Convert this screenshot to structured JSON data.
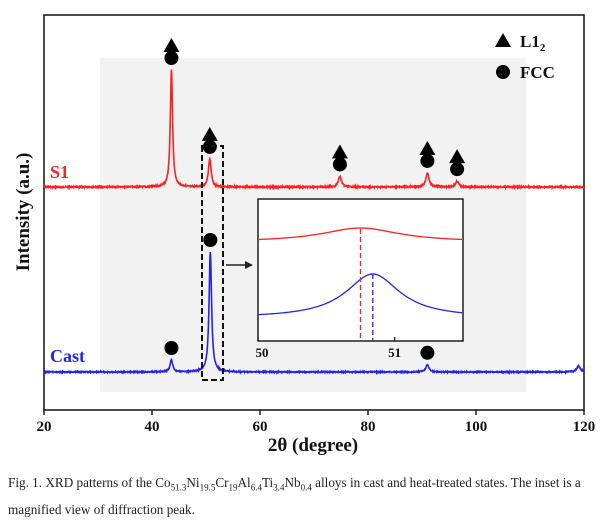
{
  "chart_data": {
    "type": "line",
    "xlabel": "2θ (degree)",
    "ylabel": "Intensity (a.u.)",
    "xlim": [
      20,
      120
    ],
    "xticks": [
      "20",
      "40",
      "60",
      "80",
      "100",
      "120"
    ],
    "grid": false,
    "legend": {
      "placement": "top-right",
      "entries": [
        {
          "marker": "triangle",
          "label": "L1",
          "sub": "2"
        },
        {
          "marker": "circle",
          "label": "FCC"
        }
      ]
    },
    "series": [
      {
        "name": "S1",
        "color": "#ff2020",
        "peaks": [
          {
            "x": 43.6,
            "height": 1.0,
            "width": 0.25
          },
          {
            "x": 50.7,
            "height": 0.24,
            "width": 0.3
          },
          {
            "x": 74.8,
            "height": 0.09,
            "width": 0.35
          },
          {
            "x": 91.0,
            "height": 0.12,
            "width": 0.35
          },
          {
            "x": 96.5,
            "height": 0.05,
            "width": 0.35
          }
        ],
        "markers": [
          {
            "x": 43.6,
            "types": [
              "triangle",
              "circle"
            ]
          },
          {
            "x": 50.7,
            "types": [
              "triangle",
              "circle"
            ]
          },
          {
            "x": 74.8,
            "types": [
              "triangle",
              "circle"
            ]
          },
          {
            "x": 91.0,
            "types": [
              "triangle",
              "circle"
            ]
          },
          {
            "x": 96.5,
            "types": [
              "triangle",
              "circle"
            ]
          }
        ]
      },
      {
        "name": "Cast",
        "color": "#2323ee",
        "peaks": [
          {
            "x": 43.6,
            "height": 0.1,
            "width": 0.3
          },
          {
            "x": 50.8,
            "height": 1.0,
            "width": 0.28
          },
          {
            "x": 91.0,
            "height": 0.06,
            "width": 0.35
          },
          {
            "x": 119.0,
            "height": 0.05,
            "width": 0.4
          }
        ],
        "markers": [
          {
            "x": 43.6,
            "types": [
              "circle"
            ]
          },
          {
            "x": 50.8,
            "types": [
              "circle"
            ]
          },
          {
            "x": 91.0,
            "types": [
              "circle"
            ]
          }
        ]
      }
    ],
    "inset": {
      "xlim": [
        50,
        51.5
      ],
      "xticks": [
        "50",
        "51"
      ],
      "s1_peak": 50.75,
      "cast_peak": 50.84
    }
  },
  "caption": {
    "prefix": "Fig. 1. XRD patterns of the Co",
    "p1_sub": "51.3",
    "p2": "Ni",
    "p2_sub": "19.5",
    "p3": "Cr",
    "p3_sub": "19",
    "p4": "Al",
    "p4_sub": "6.4",
    "p5": "Ti",
    "p5_sub": "3.4",
    "p6": "Nb",
    "p6_sub": "0.4",
    "suffix": " alloys in cast and heat-treated states. The inset is a magnified view of diffraction peak."
  }
}
